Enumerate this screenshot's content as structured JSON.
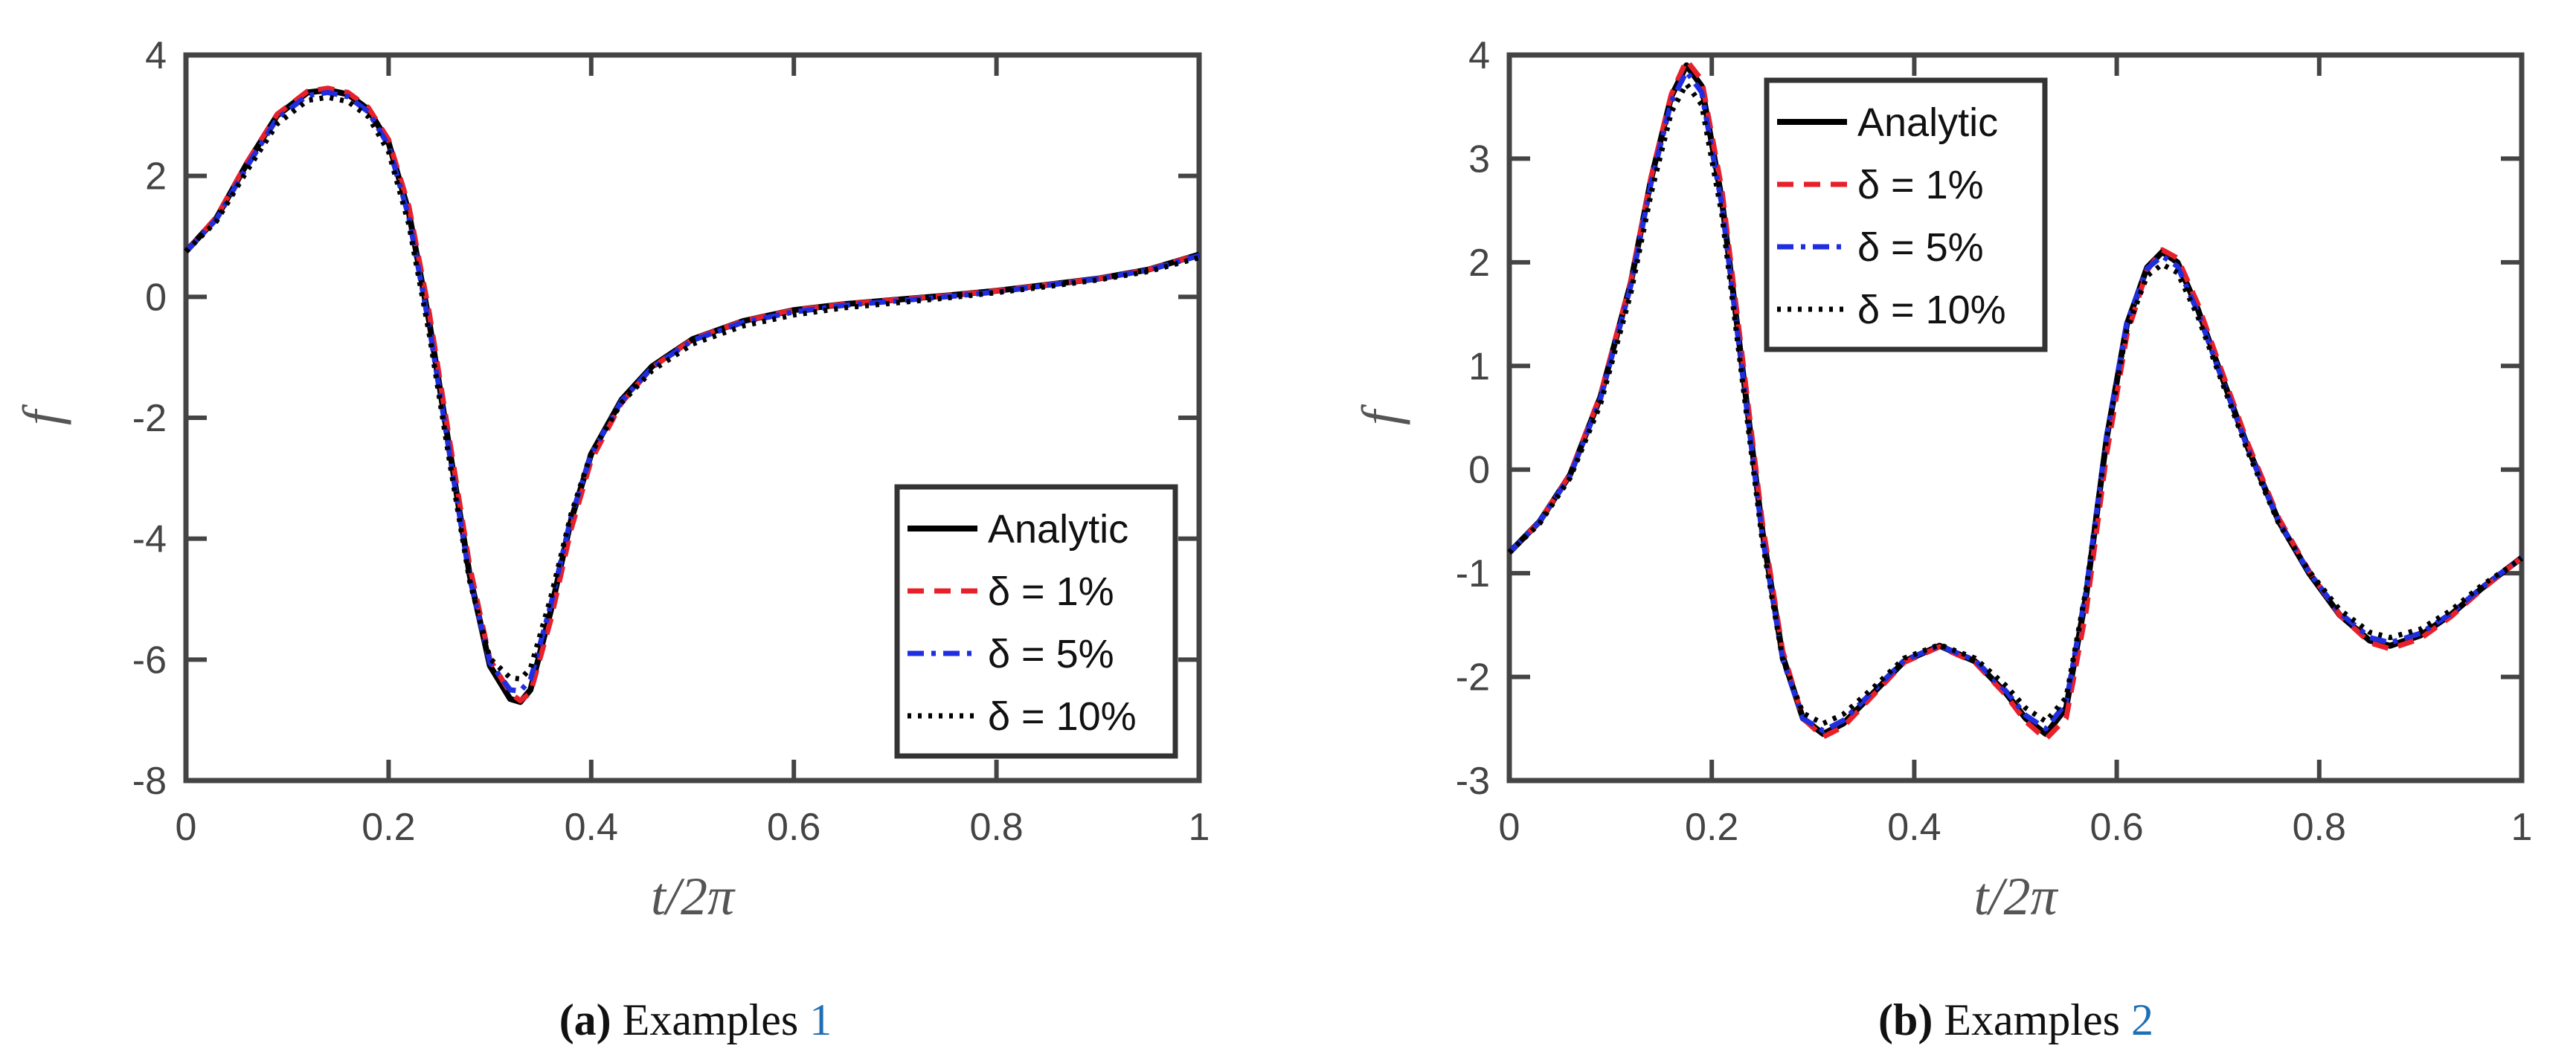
{
  "chart_data": [
    {
      "type": "line",
      "caption": {
        "label": "(a)",
        "text": "Examples",
        "ref": "1"
      },
      "xlabel": "t/2π",
      "ylabel": "f",
      "xlim": [
        0,
        1
      ],
      "ylim": [
        -8,
        4
      ],
      "xticks": [
        0,
        0.2,
        0.4,
        0.6,
        0.8,
        1
      ],
      "xtick_labels": [
        "0",
        "0.2",
        "0.4",
        "0.6",
        "0.8",
        "1"
      ],
      "yticks": [
        -8,
        -6,
        -4,
        -2,
        0,
        2,
        4
      ],
      "ytick_labels": [
        "-8",
        "-6",
        "-4",
        "-2",
        "0",
        "2",
        "4"
      ],
      "legend_position": "bottom-right",
      "x": [
        0,
        0.03,
        0.06,
        0.09,
        0.12,
        0.14,
        0.16,
        0.18,
        0.2,
        0.22,
        0.24,
        0.26,
        0.28,
        0.3,
        0.32,
        0.33,
        0.34,
        0.36,
        0.38,
        0.4,
        0.43,
        0.46,
        0.5,
        0.55,
        0.6,
        0.65,
        0.7,
        0.75,
        0.8,
        0.85,
        0.9,
        0.95,
        1.0
      ],
      "series": [
        {
          "name": "Analytic",
          "color": "#000000",
          "style": "solid",
          "values": [
            0.75,
            1.3,
            2.2,
            3.0,
            3.38,
            3.42,
            3.35,
            3.1,
            2.55,
            1.4,
            -0.4,
            -2.5,
            -4.6,
            -6.1,
            -6.65,
            -6.7,
            -6.5,
            -5.2,
            -3.7,
            -2.6,
            -1.7,
            -1.15,
            -0.7,
            -0.4,
            -0.22,
            -0.12,
            -0.05,
            0.02,
            0.1,
            0.2,
            0.3,
            0.45,
            0.7
          ]
        },
        {
          "name": "δ = 1%",
          "color": "#e8202a",
          "style": "dash",
          "values": [
            0.75,
            1.32,
            2.22,
            3.02,
            3.4,
            3.45,
            3.38,
            3.13,
            2.6,
            1.5,
            -0.25,
            -2.35,
            -4.45,
            -6.0,
            -6.55,
            -6.68,
            -6.55,
            -5.35,
            -3.85,
            -2.7,
            -1.75,
            -1.17,
            -0.7,
            -0.4,
            -0.22,
            -0.12,
            -0.05,
            0.02,
            0.1,
            0.2,
            0.3,
            0.45,
            0.7
          ]
        },
        {
          "name": "δ = 5%",
          "color": "#1f2ee0",
          "style": "dashdot",
          "values": [
            0.75,
            1.28,
            2.15,
            2.95,
            3.33,
            3.38,
            3.31,
            3.06,
            2.5,
            1.32,
            -0.48,
            -2.58,
            -4.65,
            -6.05,
            -6.5,
            -6.52,
            -6.33,
            -5.1,
            -3.65,
            -2.6,
            -1.72,
            -1.17,
            -0.72,
            -0.42,
            -0.25,
            -0.14,
            -0.07,
            0.0,
            0.08,
            0.19,
            0.3,
            0.44,
            0.68
          ]
        },
        {
          "name": "δ = 10%",
          "color": "#000000",
          "style": "dot",
          "values": [
            0.75,
            1.25,
            2.08,
            2.86,
            3.25,
            3.3,
            3.23,
            2.98,
            2.4,
            1.2,
            -0.6,
            -2.7,
            -4.7,
            -5.98,
            -6.3,
            -6.32,
            -6.15,
            -4.98,
            -3.6,
            -2.58,
            -1.75,
            -1.22,
            -0.78,
            -0.48,
            -0.3,
            -0.18,
            -0.1,
            -0.02,
            0.07,
            0.17,
            0.28,
            0.42,
            0.65
          ]
        }
      ]
    },
    {
      "type": "line",
      "caption": {
        "label": "(b)",
        "text": "Examples",
        "ref": "2"
      },
      "xlabel": "t/2π",
      "ylabel": "f",
      "xlim": [
        0,
        1
      ],
      "ylim": [
        -3,
        4
      ],
      "xticks": [
        0,
        0.2,
        0.4,
        0.6,
        0.8,
        1
      ],
      "xtick_labels": [
        "0",
        "0.2",
        "0.4",
        "0.6",
        "0.8",
        "1"
      ],
      "yticks": [
        -3,
        -2,
        -1,
        0,
        1,
        2,
        3,
        4
      ],
      "ytick_labels": [
        "-3",
        "-2",
        "-1",
        "0",
        "1",
        "2",
        "3",
        "4"
      ],
      "legend_position": "top-left",
      "x": [
        0,
        0.03,
        0.06,
        0.09,
        0.12,
        0.14,
        0.16,
        0.175,
        0.19,
        0.21,
        0.23,
        0.25,
        0.27,
        0.29,
        0.31,
        0.33,
        0.36,
        0.39,
        0.425,
        0.46,
        0.49,
        0.51,
        0.53,
        0.55,
        0.57,
        0.59,
        0.61,
        0.63,
        0.645,
        0.66,
        0.68,
        0.7,
        0.73,
        0.76,
        0.79,
        0.82,
        0.85,
        0.87,
        0.9,
        0.93,
        0.96,
        1.0
      ],
      "series": [
        {
          "name": "Analytic",
          "color": "#000000",
          "style": "solid",
          "values": [
            -0.8,
            -0.5,
            -0.05,
            0.7,
            1.8,
            2.8,
            3.6,
            3.9,
            3.7,
            2.6,
            1.0,
            -0.6,
            -1.8,
            -2.4,
            -2.55,
            -2.45,
            -2.15,
            -1.85,
            -1.7,
            -1.85,
            -2.15,
            -2.4,
            -2.55,
            -2.3,
            -1.2,
            0.3,
            1.4,
            1.95,
            2.1,
            2.0,
            1.55,
            1.0,
            0.2,
            -0.5,
            -1.0,
            -1.4,
            -1.65,
            -1.7,
            -1.6,
            -1.4,
            -1.15,
            -0.85
          ]
        },
        {
          "name": "δ = 1%",
          "color": "#e8202a",
          "style": "dash",
          "values": [
            -0.8,
            -0.5,
            -0.04,
            0.72,
            1.82,
            2.82,
            3.62,
            3.95,
            3.76,
            2.7,
            1.1,
            -0.52,
            -1.75,
            -2.4,
            -2.58,
            -2.48,
            -2.17,
            -1.86,
            -1.71,
            -1.86,
            -2.17,
            -2.43,
            -2.6,
            -2.4,
            -1.35,
            0.15,
            1.3,
            1.92,
            2.12,
            2.04,
            1.6,
            1.05,
            0.24,
            -0.47,
            -0.98,
            -1.4,
            -1.67,
            -1.73,
            -1.63,
            -1.42,
            -1.16,
            -0.85
          ]
        },
        {
          "name": "δ = 5%",
          "color": "#1f2ee0",
          "style": "dashdot",
          "values": [
            -0.8,
            -0.5,
            -0.06,
            0.68,
            1.77,
            2.76,
            3.55,
            3.84,
            3.64,
            2.55,
            0.95,
            -0.65,
            -1.83,
            -2.4,
            -2.52,
            -2.42,
            -2.13,
            -1.84,
            -1.7,
            -1.84,
            -2.13,
            -2.37,
            -2.5,
            -2.25,
            -1.15,
            0.33,
            1.42,
            1.94,
            2.06,
            1.96,
            1.52,
            0.98,
            0.19,
            -0.5,
            -0.99,
            -1.38,
            -1.62,
            -1.67,
            -1.58,
            -1.39,
            -1.14,
            -0.85
          ]
        },
        {
          "name": "δ = 10%",
          "color": "#000000",
          "style": "dot",
          "values": [
            -0.8,
            -0.52,
            -0.08,
            0.63,
            1.7,
            2.66,
            3.45,
            3.72,
            3.52,
            2.46,
            0.88,
            -0.7,
            -1.83,
            -2.35,
            -2.45,
            -2.36,
            -2.1,
            -1.82,
            -1.69,
            -1.82,
            -2.08,
            -2.3,
            -2.43,
            -2.2,
            -1.14,
            0.3,
            1.35,
            1.87,
            1.98,
            1.9,
            1.48,
            0.95,
            0.16,
            -0.52,
            -0.98,
            -1.35,
            -1.57,
            -1.62,
            -1.54,
            -1.36,
            -1.12,
            -0.86
          ]
        }
      ]
    }
  ]
}
